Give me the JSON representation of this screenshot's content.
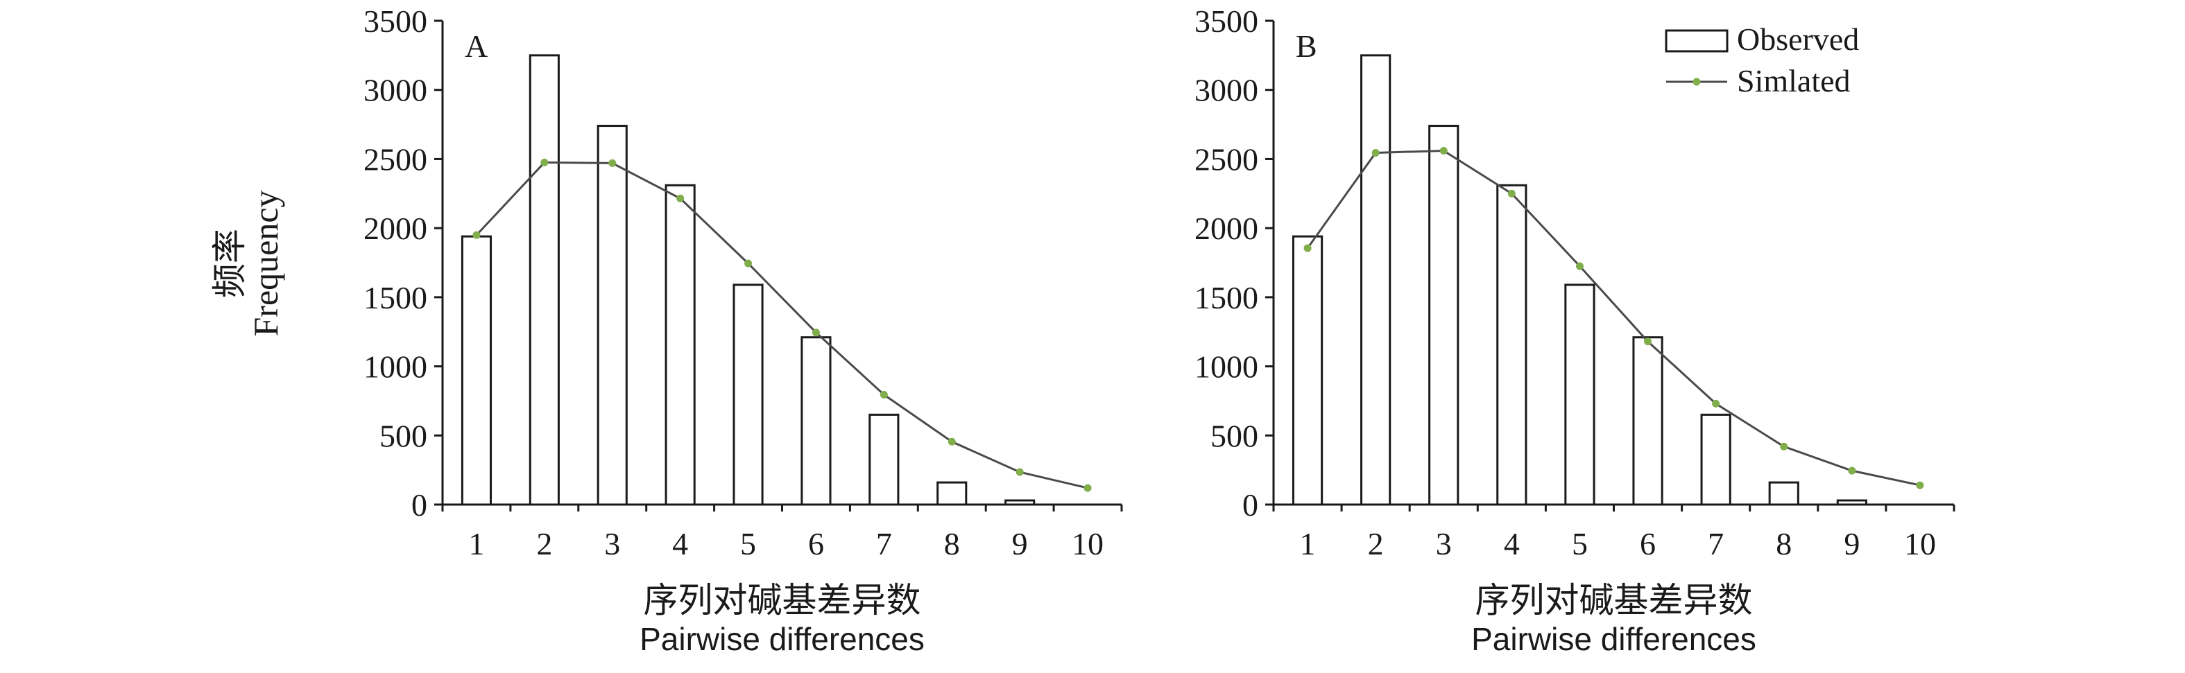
{
  "colors": {
    "axis": "#1a1a1a",
    "bar_fill": "#ffffff",
    "bar_stroke": "#1a1a1a",
    "line": "#4a4a4a",
    "marker": "#7fae4a"
  },
  "y_axis_label": {
    "cn": "频率",
    "en": "Frequency"
  },
  "chart_data": [
    {
      "type": "bar",
      "panel": "A",
      "categories": [
        "1",
        "2",
        "3",
        "4",
        "5",
        "6",
        "7",
        "8",
        "9",
        "10"
      ],
      "series": [
        {
          "name": "Observed",
          "type": "bar",
          "values": [
            1940,
            3250,
            2740,
            2310,
            1590,
            1210,
            650,
            160,
            30,
            0
          ]
        },
        {
          "name": "Simlated",
          "type": "line",
          "values": [
            1950,
            2475,
            2470,
            2215,
            1745,
            1245,
            795,
            455,
            235,
            120
          ]
        }
      ],
      "xlabel": [
        "序列对碱基差异数",
        "Pairwise differences"
      ],
      "ylabel": [
        "频率",
        "Frequency"
      ],
      "ylim": [
        0,
        3500
      ],
      "yticks": [
        0,
        500,
        1000,
        1500,
        2000,
        2500,
        3000,
        3500
      ],
      "legend": null,
      "grid": false
    },
    {
      "type": "bar",
      "panel": "B",
      "categories": [
        "1",
        "2",
        "3",
        "4",
        "5",
        "6",
        "7",
        "8",
        "9",
        "10"
      ],
      "series": [
        {
          "name": "Observed",
          "type": "bar",
          "values": [
            1940,
            3250,
            2740,
            2310,
            1590,
            1210,
            650,
            160,
            30,
            0
          ]
        },
        {
          "name": "Simlated",
          "type": "line",
          "values": [
            1855,
            2545,
            2560,
            2250,
            1725,
            1180,
            730,
            420,
            245,
            140
          ]
        }
      ],
      "xlabel": [
        "序列对碱基差异数",
        "Pairwise differences"
      ],
      "ylabel": "",
      "ylim": [
        0,
        3500
      ],
      "yticks": [
        0,
        500,
        1000,
        1500,
        2000,
        2500,
        3000,
        3500
      ],
      "legend": "top-right",
      "grid": false
    }
  ]
}
